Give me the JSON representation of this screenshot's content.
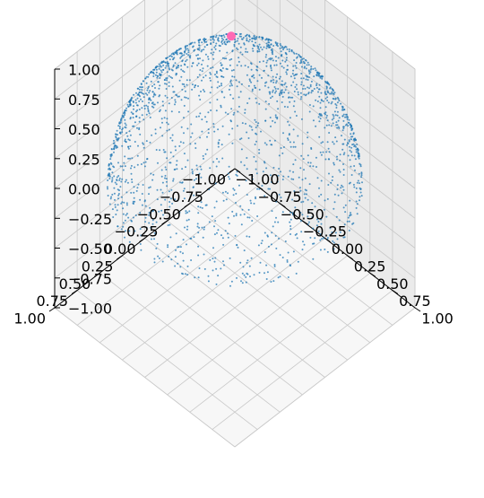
{
  "chart_data": {
    "type": "scatter",
    "title": "",
    "xlabel": "",
    "ylabel": "",
    "zlabel": "",
    "xlim": [
      -1,
      1
    ],
    "ylim": [
      -1,
      1
    ],
    "zlim": [
      -1,
      1
    ],
    "grid": true,
    "projection": "3d",
    "x_tick_labels": [
      "−1.00",
      "−0.75",
      "−0.50",
      "−0.25",
      "0.00",
      "0.25",
      "0.50",
      "0.75",
      "1.00"
    ],
    "y_tick_labels": [
      "−1.00",
      "−0.75",
      "−0.50",
      "−0.25",
      "0.00",
      "0.25",
      "0.50",
      "0.75",
      "1.00"
    ],
    "z_tick_labels": [
      "−1.00",
      "−0.75",
      "−0.50",
      "−0.25",
      "0.00",
      "0.25",
      "0.50",
      "0.75",
      "1.00"
    ],
    "series": [
      {
        "shape": "upper unit hemisphere (z ≥ 0), points sampled uniformly on surface",
        "radius": 1.0,
        "point_count": 2000,
        "color": "#1f77b4",
        "marker_size": 1
      },
      {
        "x": [
          -0.32
        ],
        "y": [
          -0.36
        ],
        "z": [
          0.88
        ],
        "color": "#ff69b4",
        "marker_size": 8
      }
    ]
  }
}
